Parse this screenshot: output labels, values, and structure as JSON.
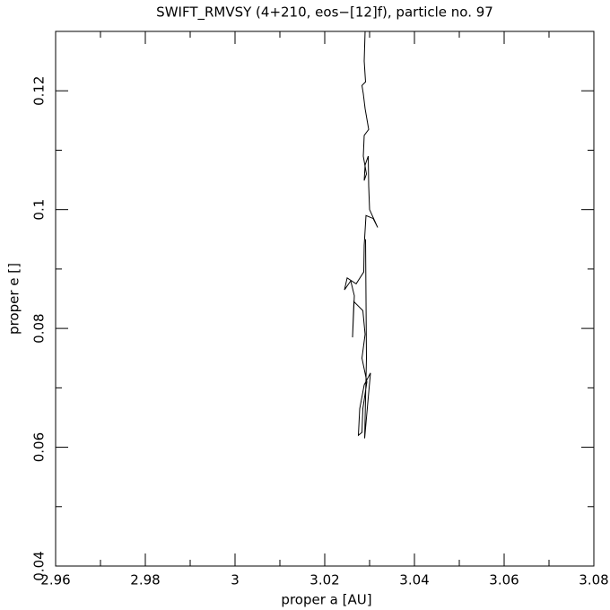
{
  "chart_data": {
    "type": "line",
    "title": "SWIFT_RMVSY (4+210, eos−[12]f), particle no. 97",
    "xlabel": "proper a [AU]",
    "ylabel": "proper e []",
    "xlim": [
      2.96,
      3.08
    ],
    "xticks": [
      2.96,
      2.98,
      3,
      3.02,
      3.04,
      3.06,
      3.08
    ],
    "xminorticks": [
      2.97,
      2.99,
      3.01,
      3.03,
      3.05,
      3.07
    ],
    "ylim": [
      0.04,
      0.13
    ],
    "yticks": [
      0.04,
      0.06,
      0.08,
      0.1,
      0.12
    ],
    "yminorticks": [
      0.05,
      0.07,
      0.09,
      0.11,
      0.13
    ],
    "series": [
      {
        "color": "#000000",
        "x": [
          3.029,
          3.0288,
          3.0291,
          3.0283,
          3.0286,
          3.029,
          3.0298,
          3.0288,
          3.0286,
          3.0293,
          3.0288,
          3.029,
          3.0297,
          3.0298,
          3.03,
          3.0318,
          3.0308,
          3.0292,
          3.0288,
          3.0287,
          3.027,
          3.025,
          3.0244,
          3.0258,
          3.0266,
          3.0262,
          3.0265,
          3.0285,
          3.029,
          3.0283,
          3.0294,
          3.0285,
          3.0283,
          3.0275,
          3.0278,
          3.0288,
          3.0302,
          3.0296,
          3.0289,
          3.0293,
          3.0292,
          3.0291
        ],
        "values": [
          0.13,
          0.125,
          0.1215,
          0.1209,
          0.1195,
          0.117,
          0.1135,
          0.1125,
          0.109,
          0.106,
          0.1049,
          0.1075,
          0.109,
          0.104,
          0.1,
          0.097,
          0.0985,
          0.099,
          0.094,
          0.0895,
          0.0875,
          0.0885,
          0.0865,
          0.088,
          0.0855,
          0.0785,
          0.0845,
          0.083,
          0.079,
          0.075,
          0.071,
          0.0665,
          0.0625,
          0.062,
          0.0665,
          0.0705,
          0.0725,
          0.0675,
          0.0615,
          0.075,
          0.085,
          0.095
        ]
      }
    ]
  }
}
